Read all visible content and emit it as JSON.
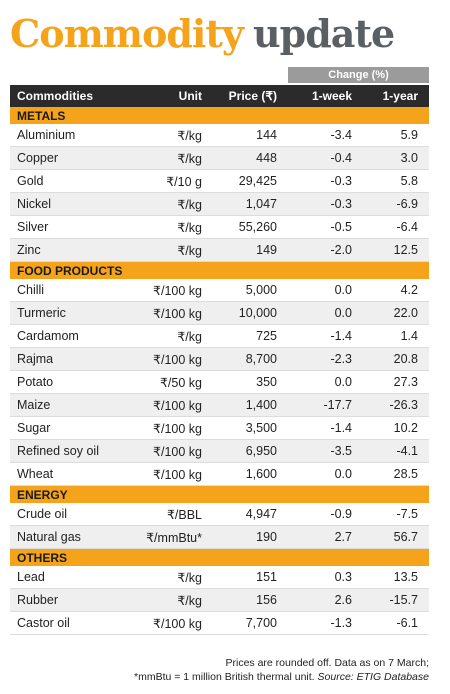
{
  "title": {
    "part1": "Commodity",
    "part2": "update"
  },
  "change_label": "Change (%)",
  "headers": {
    "name": "Commodities",
    "unit": "Unit",
    "price": "Price (₹)",
    "week": "1-week",
    "year": "1-year"
  },
  "sections": [
    {
      "label": "METALS",
      "rows": [
        {
          "name": "Aluminium",
          "unit": "₹/kg",
          "price": "144",
          "week": "-3.4",
          "year": "5.9"
        },
        {
          "name": "Copper",
          "unit": "₹/kg",
          "price": "448",
          "week": "-0.4",
          "year": "3.0"
        },
        {
          "name": "Gold",
          "unit": "₹/10 g",
          "price": "29,425",
          "week": "-0.3",
          "year": "5.8"
        },
        {
          "name": "Nickel",
          "unit": "₹/kg",
          "price": "1,047",
          "week": "-0.3",
          "year": "-6.9"
        },
        {
          "name": "Silver",
          "unit": "₹/kg",
          "price": "55,260",
          "week": "-0.5",
          "year": "-6.4"
        },
        {
          "name": "Zinc",
          "unit": "₹/kg",
          "price": "149",
          "week": "-2.0",
          "year": "12.5"
        }
      ]
    },
    {
      "label": "FOOD PRODUCTS",
      "rows": [
        {
          "name": "Chilli",
          "unit": "₹/100 kg",
          "price": "5,000",
          "week": "0.0",
          "year": "4.2"
        },
        {
          "name": "Turmeric",
          "unit": "₹/100 kg",
          "price": "10,000",
          "week": "0.0",
          "year": "22.0"
        },
        {
          "name": "Cardamom",
          "unit": "₹/kg",
          "price": "725",
          "week": "-1.4",
          "year": "1.4"
        },
        {
          "name": "Rajma",
          "unit": "₹/100 kg",
          "price": "8,700",
          "week": "-2.3",
          "year": "20.8"
        },
        {
          "name": "Potato",
          "unit": "₹/50 kg",
          "price": "350",
          "week": "0.0",
          "year": "27.3"
        },
        {
          "name": "Maize",
          "unit": "₹/100 kg",
          "price": "1,400",
          "week": "-17.7",
          "year": "-26.3"
        },
        {
          "name": "Sugar",
          "unit": "₹/100 kg",
          "price": "3,500",
          "week": "-1.4",
          "year": "10.2"
        },
        {
          "name": "Refined soy oil",
          "unit": "₹/100 kg",
          "price": "6,950",
          "week": "-3.5",
          "year": "-4.1"
        },
        {
          "name": "Wheat",
          "unit": "₹/100 kg",
          "price": "1,600",
          "week": "0.0",
          "year": "28.5"
        }
      ]
    },
    {
      "label": "ENERGY",
      "rows": [
        {
          "name": "Crude oil",
          "unit": "₹/BBL",
          "price": "4,947",
          "week": "-0.9",
          "year": "-7.5"
        },
        {
          "name": "Natural gas",
          "unit": "₹/mmBtu*",
          "price": "190",
          "week": "2.7",
          "year": "56.7"
        }
      ]
    },
    {
      "label": "OTHERS",
      "rows": [
        {
          "name": "Lead",
          "unit": "₹/kg",
          "price": "151",
          "week": "0.3",
          "year": "13.5"
        },
        {
          "name": "Rubber",
          "unit": "₹/kg",
          "price": "156",
          "week": "2.6",
          "year": "-15.7"
        },
        {
          "name": "Castor oil",
          "unit": "₹/100 kg",
          "price": "7,700",
          "week": "-1.3",
          "year": "-6.1"
        }
      ]
    }
  ],
  "footnote": {
    "line1": "Prices are rounded off. Data as on 7 March;",
    "line2": "*mmBtu = 1 million British thermal unit.",
    "source": "Source: ETIG Database"
  }
}
